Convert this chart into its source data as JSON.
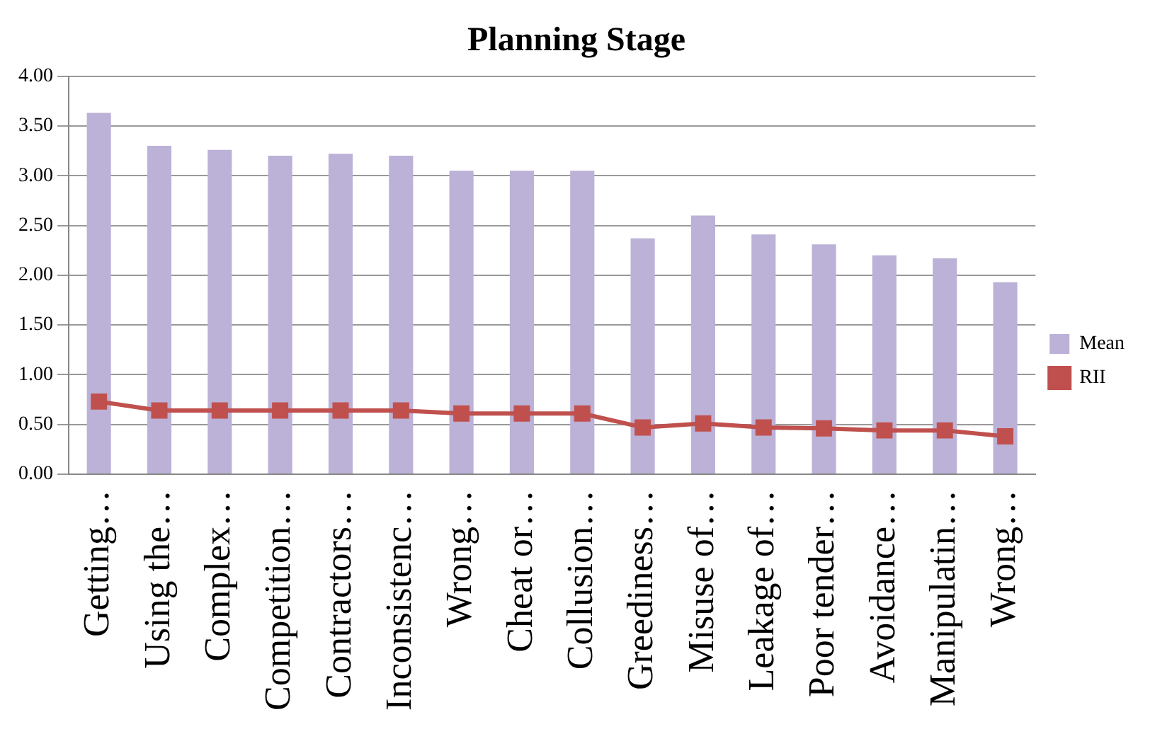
{
  "chart_data": {
    "type": "bar",
    "title": "Planning Stage",
    "categories": [
      "Getting…",
      "Using the…",
      "Complex…",
      "Competition…",
      "Contractors…",
      "Inconsistenc…",
      "Wrong…",
      "Cheat or…",
      "Collusion…",
      "Greediness…",
      "Misuse of…",
      "Leakage of…",
      "Poor tender…",
      "Avoidance…",
      "Manipulatin…",
      "Wrong…"
    ],
    "series": [
      {
        "name": "Mean",
        "color": "#bcb1d6",
        "values": [
          3.63,
          3.3,
          3.26,
          3.2,
          3.22,
          3.2,
          3.05,
          3.05,
          3.05,
          2.37,
          2.6,
          2.41,
          2.31,
          2.2,
          2.17,
          1.93
        ]
      },
      {
        "name": "RII",
        "type": "line",
        "color": "#c0504d",
        "values": [
          0.73,
          0.64,
          0.64,
          0.64,
          0.64,
          0.64,
          0.61,
          0.61,
          0.61,
          0.47,
          0.51,
          0.47,
          0.46,
          0.44,
          0.44,
          0.38
        ]
      }
    ],
    "ylim": [
      0,
      4
    ],
    "yticks": [
      {
        "value": 0,
        "label": "0.00"
      },
      {
        "value": 0.5,
        "label": "0.50"
      },
      {
        "value": 1,
        "label": "1.00"
      },
      {
        "value": 1.5,
        "label": "1.50"
      },
      {
        "value": 2,
        "label": "2.00"
      },
      {
        "value": 2.5,
        "label": "2.50"
      },
      {
        "value": 3,
        "label": "3.00"
      },
      {
        "value": 3.5,
        "label": "3.50"
      },
      {
        "value": 4,
        "label": "4.00"
      }
    ],
    "grid": "y",
    "legend": "right",
    "marker": "square"
  }
}
